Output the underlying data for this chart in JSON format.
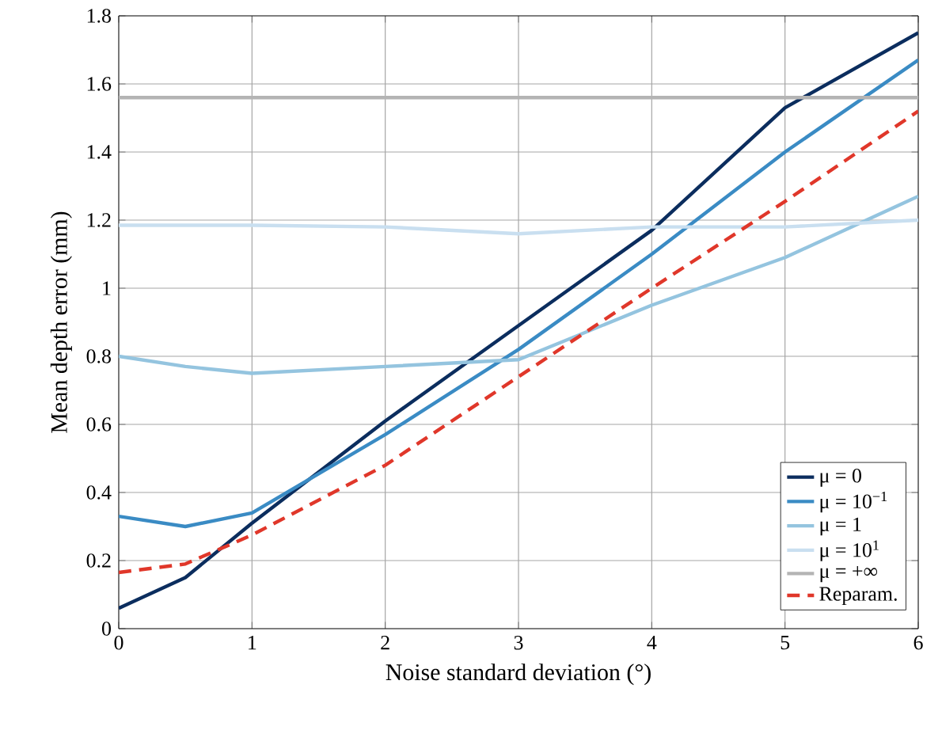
{
  "chart_data": {
    "type": "line",
    "xlabel": "Noise standard deviation (°)",
    "ylabel": "Mean depth error (mm)",
    "xlim": [
      0,
      6
    ],
    "ylim": [
      0,
      1.8
    ],
    "xticks": [
      0,
      1,
      2,
      3,
      4,
      5,
      6
    ],
    "yticks": [
      0,
      0.2,
      0.4,
      0.6,
      0.8,
      1,
      1.2,
      1.4,
      1.6,
      1.8
    ],
    "grid": true,
    "legend": "bottom right",
    "line_style": "solid",
    "x": [
      0,
      0.5,
      1,
      2,
      3,
      4,
      5,
      6
    ],
    "series": [
      {
        "name": "μ = 0",
        "color": "#0b2d5e",
        "values": [
          0.06,
          0.15,
          0.31,
          0.61,
          0.89,
          1.17,
          1.53,
          1.75
        ]
      },
      {
        "name": "μ = 10$^{−1}$",
        "color": "#3a8bc4",
        "values": [
          0.33,
          0.3,
          0.34,
          0.57,
          0.82,
          1.1,
          1.4,
          1.67
        ]
      },
      {
        "name": "μ = 1",
        "color": "#94c4df",
        "values": [
          0.8,
          0.77,
          0.75,
          0.77,
          0.79,
          0.95,
          1.09,
          1.27
        ]
      },
      {
        "name": "μ = 10$^{1}$",
        "color": "#c9dff0",
        "values": [
          1.185,
          1.185,
          1.185,
          1.18,
          1.16,
          1.18,
          1.18,
          1.2
        ]
      },
      {
        "name": "μ = +∞",
        "color": "#b4b4b4",
        "values": [
          1.56,
          1.56,
          1.56,
          1.56,
          1.56,
          1.56,
          1.56,
          1.56
        ]
      },
      {
        "name": "Reparam.",
        "color": "#e0372a",
        "line_style": "dashed",
        "values": [
          0.165,
          0.19,
          0.275,
          0.48,
          0.74,
          1.0,
          1.255,
          1.52
        ]
      }
    ]
  }
}
